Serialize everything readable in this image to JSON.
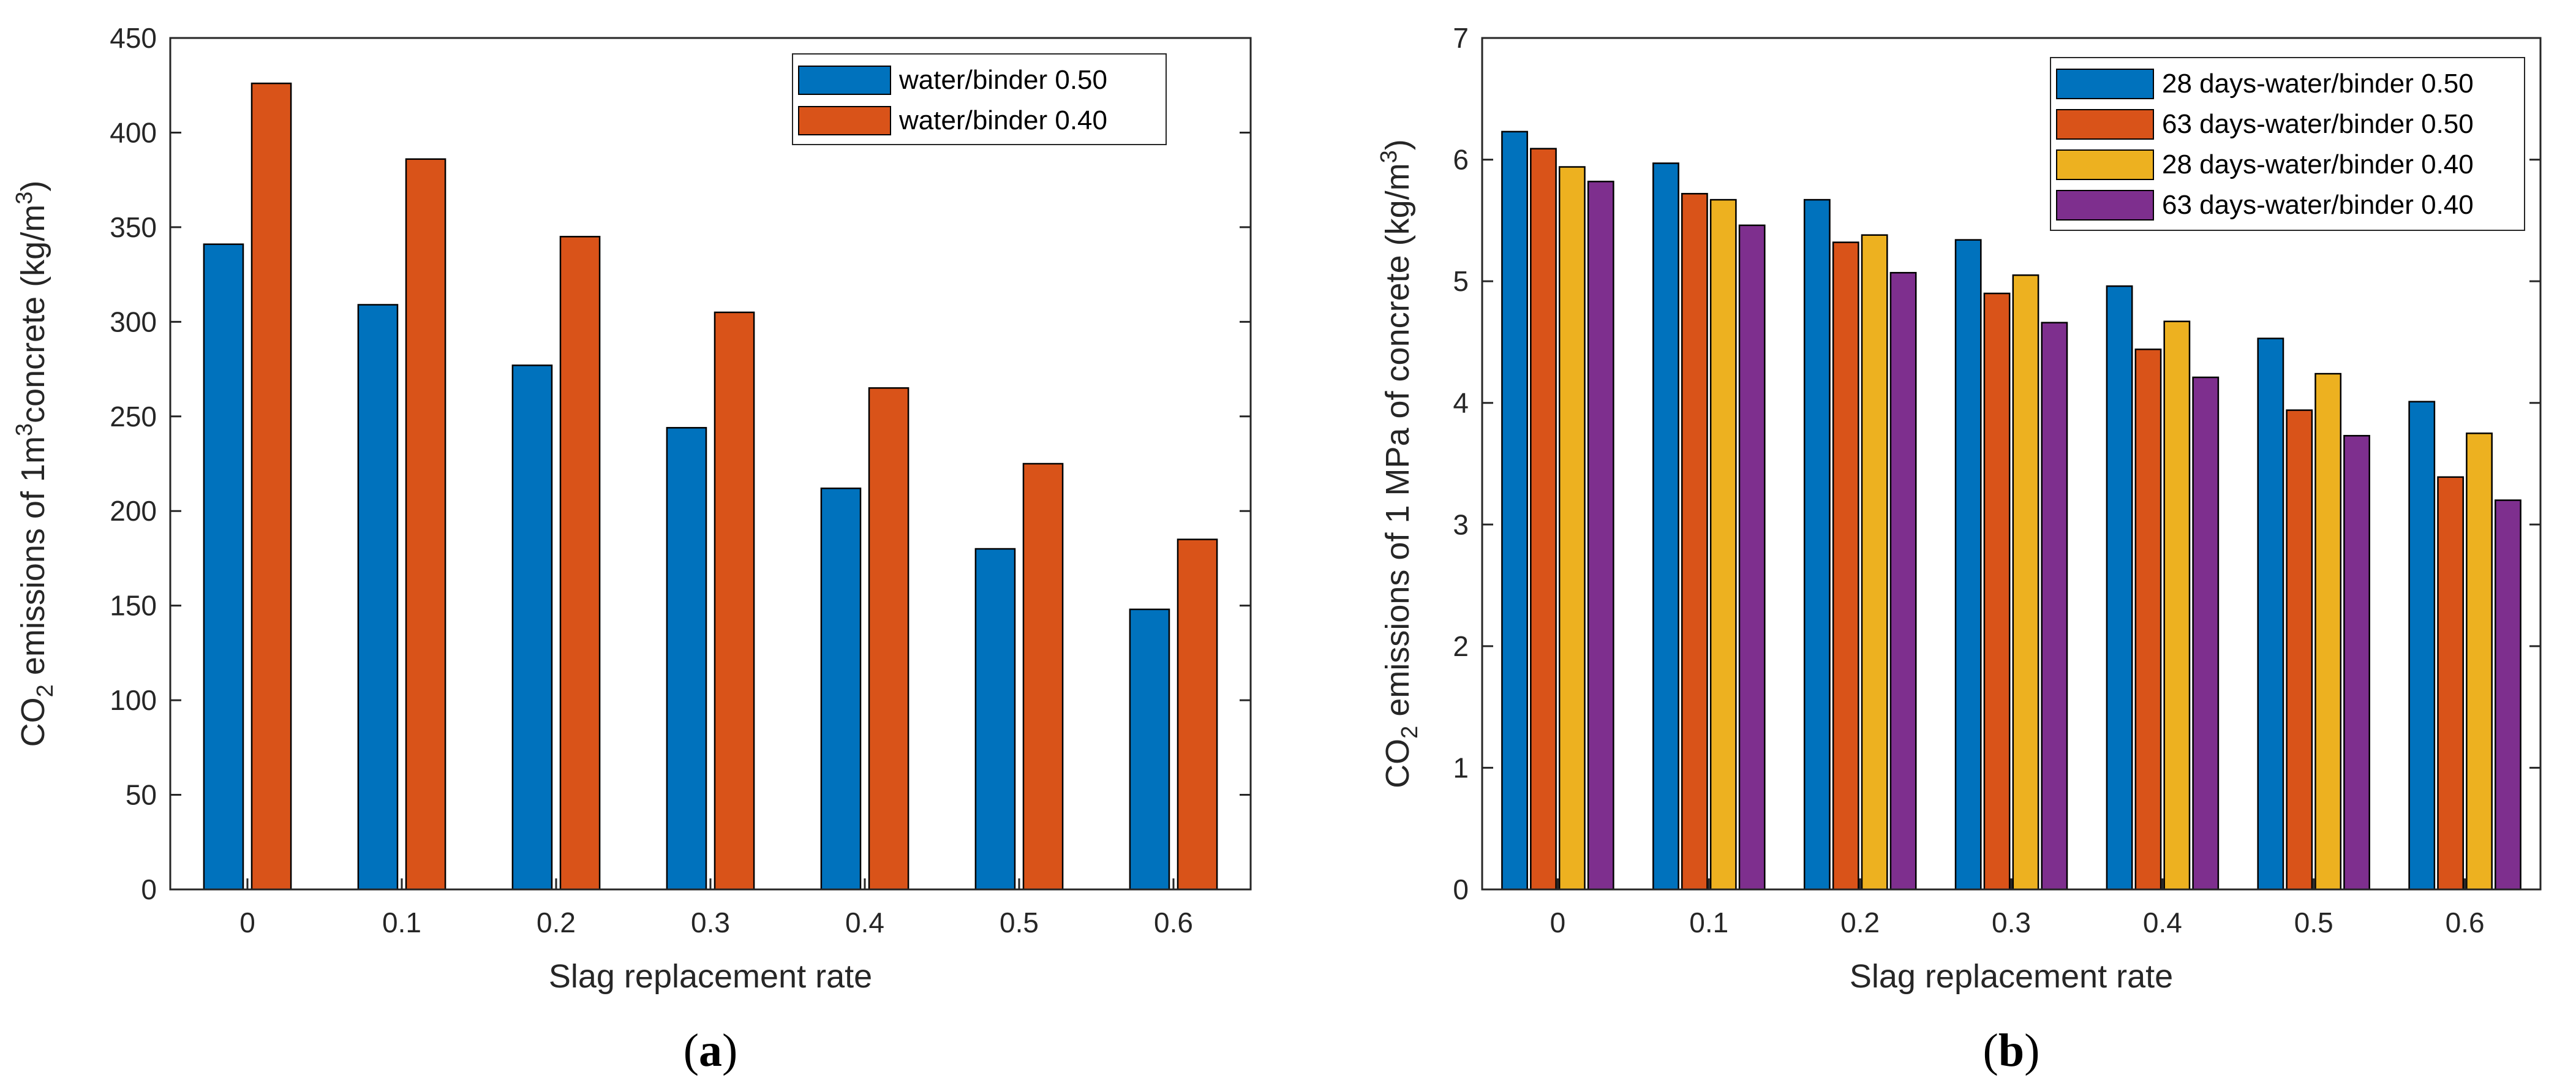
{
  "colors": {
    "blue": "#0072BD",
    "orange": "#D95319",
    "yellow": "#EDB120",
    "purple": "#7E2F8E"
  },
  "chart_data": [
    {
      "id": "a",
      "type": "bar",
      "caption": {
        "open": "(",
        "letter": "a",
        "close": ")"
      },
      "xlabel": "Slag replacement rate",
      "ylabel": {
        "prefix": "CO",
        "sub": "2",
        "mid": " emissions of 1m",
        "sup": "3",
        "mid2": "concrete (kg/m",
        "sup2": "3",
        "suffix": ")"
      },
      "categories": [
        "0",
        "0.1",
        "0.2",
        "0.3",
        "0.4",
        "0.5",
        "0.6"
      ],
      "ylim": [
        0,
        450
      ],
      "yticks": [
        "0",
        "50",
        "100",
        "150",
        "200",
        "250",
        "300",
        "350",
        "400",
        "450"
      ],
      "grid": false,
      "legend_position": "top-right",
      "series": [
        {
          "name": "water/binder 0.50",
          "color": "#0072BD",
          "values": [
            341,
            309,
            277,
            244,
            212,
            180,
            148
          ]
        },
        {
          "name": "water/binder 0.40",
          "color": "#D95319",
          "values": [
            426,
            386,
            345,
            305,
            265,
            225,
            185
          ]
        }
      ]
    },
    {
      "id": "b",
      "type": "bar",
      "caption": {
        "open": "(",
        "letter": "b",
        "close": ")"
      },
      "xlabel": "Slag replacement rate",
      "ylabel": {
        "prefix": "CO",
        "sub": "2",
        "mid": " emissions of 1 MPa of concrete (kg/m",
        "sup": "3",
        "suffix": ")"
      },
      "categories": [
        "0",
        "0.1",
        "0.2",
        "0.3",
        "0.4",
        "0.5",
        "0.6"
      ],
      "ylim": [
        0,
        7
      ],
      "yticks": [
        "0",
        "1",
        "2",
        "3",
        "4",
        "5",
        "6",
        "7"
      ],
      "grid": false,
      "legend_position": "top-right",
      "series": [
        {
          "name": "28 days-water/binder 0.50",
          "color": "#0072BD",
          "values": [
            6.23,
            5.97,
            5.67,
            5.34,
            4.96,
            4.53,
            4.01
          ]
        },
        {
          "name": "63 days-water/binder 0.50",
          "color": "#D95319",
          "values": [
            6.09,
            5.72,
            5.32,
            4.9,
            4.44,
            3.94,
            3.39
          ]
        },
        {
          "name": "28 days-water/binder 0.40",
          "color": "#EDB120",
          "values": [
            5.94,
            5.67,
            5.38,
            5.05,
            4.67,
            4.24,
            3.75
          ]
        },
        {
          "name": "63 days-water/binder 0.40",
          "color": "#7E2F8E",
          "values": [
            5.82,
            5.46,
            5.07,
            4.66,
            4.21,
            3.73,
            3.2
          ]
        }
      ]
    }
  ]
}
